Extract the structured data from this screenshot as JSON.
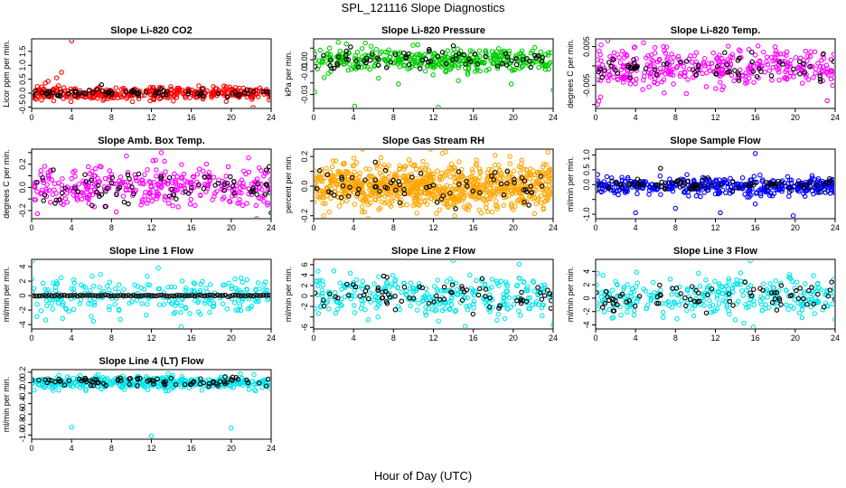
{
  "figure": {
    "title": "SPL_121116  Slope Diagnostics",
    "xlabel": "Hour of Day (UTC)"
  },
  "chart_data": [
    {
      "type": "scatter",
      "title": "Slope Li-820 CO2",
      "ylabel": "Licor ppm per min.",
      "xlim": [
        0,
        24
      ],
      "xticks": [
        0,
        4,
        8,
        12,
        16,
        20,
        24
      ],
      "ylim": [
        -0.55,
        1.95
      ],
      "yticks": [
        -0.5,
        0.0,
        0.5,
        1.0,
        1.5
      ],
      "ytick_labels": [
        "-0.5",
        "0.0",
        "0.5",
        "1.0",
        "1.5"
      ],
      "colors": {
        "primary": "#ff0000",
        "secondary": "#000000"
      },
      "series": [
        {
          "color": "#ff0000",
          "gen": {
            "n": 380,
            "center": 0.0,
            "spread": 0.12,
            "seed": 11
          },
          "outliers": [
            [
              4.0,
              1.88
            ],
            [
              2.5,
              0.55
            ],
            [
              3.0,
              0.75
            ],
            [
              14.2,
              -0.28
            ],
            [
              22.2,
              -0.52
            ],
            [
              19.5,
              -0.3
            ],
            [
              1.0,
              -0.25
            ]
          ]
        },
        {
          "color": "#000000",
          "gen": {
            "n": 75,
            "center": 0.0,
            "spread": 0.08,
            "seed": 12
          },
          "outliers": [
            [
              7.0,
              0.3
            ]
          ]
        }
      ]
    },
    {
      "type": "scatter",
      "title": "Slope Li-820 Pressure",
      "ylabel": "kPa per min.",
      "xlim": [
        0,
        24
      ],
      "xticks": [
        0,
        4,
        8,
        12,
        16,
        20,
        24
      ],
      "ylim": [
        -0.042,
        0.018
      ],
      "yticks": [
        -0.03,
        -0.02,
        -0.01,
        0.0,
        0.01
      ],
      "ytick_labels": [
        "-0.03",
        "",
        "-0.01",
        "0.00",
        ""
      ],
      "colors": {
        "primary": "#00cc00",
        "secondary": "#000000"
      },
      "series": [
        {
          "color": "#00cc00",
          "gen": {
            "n": 380,
            "center": 0.0,
            "spread": 0.005,
            "seed": 21
          },
          "outliers": [
            [
              0.1,
              -0.028
            ],
            [
              4.1,
              -0.04
            ],
            [
              12.5,
              -0.041
            ],
            [
              8.5,
              -0.021
            ],
            [
              6.5,
              -0.016
            ],
            [
              19.8,
              -0.021
            ],
            [
              24.0,
              -0.026
            ],
            [
              14.5,
              -0.018
            ]
          ]
        },
        {
          "color": "#000000",
          "gen": {
            "n": 70,
            "center": 0.0,
            "spread": 0.004,
            "seed": 22
          },
          "outliers": [
            [
              3.7,
              0.011
            ],
            [
              14.0,
              0.012
            ]
          ]
        }
      ]
    },
    {
      "type": "scatter",
      "title": "Slope Li-820 Temp.",
      "ylabel": "degrees C per min.",
      "xlim": [
        0,
        24
      ],
      "xticks": [
        0,
        4,
        8,
        12,
        16,
        20,
        24
      ],
      "ylim": [
        -0.011,
        0.007
      ],
      "yticks": [
        -0.01,
        -0.005,
        0.0,
        0.005
      ],
      "ytick_labels": [
        "",
        "-0.005",
        "",
        "0.005"
      ],
      "colors": {
        "primary": "#ff00ff",
        "secondary": "#000000"
      },
      "series": [
        {
          "color": "#ff00ff",
          "gen": {
            "n": 360,
            "center": -0.0005,
            "spread": 0.0025,
            "seed": 31
          },
          "outliers": [
            [
              1.2,
              0.0065
            ],
            [
              4.8,
              0.006
            ],
            [
              0.2,
              -0.01
            ],
            [
              6.8,
              0.005
            ],
            [
              23.2,
              -0.009
            ],
            [
              0.5,
              -0.008
            ]
          ]
        },
        {
          "color": "#000000",
          "gen": {
            "n": 65,
            "center": -0.0005,
            "spread": 0.002,
            "seed": 32
          },
          "outliers": []
        }
      ]
    },
    {
      "type": "scatter",
      "title": "Slope Amb. Box Temp.",
      "ylabel": "degrees C per min.",
      "xlim": [
        0,
        24
      ],
      "xticks": [
        0,
        4,
        8,
        12,
        16,
        20,
        24
      ],
      "ylim": [
        -0.27,
        0.33
      ],
      "yticks": [
        -0.2,
        -0.1,
        0.0,
        0.1,
        0.2,
        0.3
      ],
      "ytick_labels": [
        "-0.2",
        "",
        "0.0",
        "",
        "0.2",
        ""
      ],
      "colors": {
        "primary": "#ff00ff",
        "secondary": "#000000"
      },
      "series": [
        {
          "color": "#ff00ff",
          "gen": {
            "n": 340,
            "center": 0.0,
            "spread": 0.09,
            "seed": 41
          },
          "outliers": [
            [
              13.0,
              0.3
            ],
            [
              9.5,
              0.27
            ]
          ]
        },
        {
          "color": "#000000",
          "gen": {
            "n": 70,
            "center": 0.0,
            "spread": 0.08,
            "seed": 42
          },
          "outliers": [
            [
              24.0,
              -0.22
            ],
            [
              23.8,
              0.18
            ]
          ]
        }
      ]
    },
    {
      "type": "scatter",
      "title": "Slope Gas Stream RH",
      "ylabel": "percent per min.",
      "xlim": [
        0,
        24
      ],
      "xticks": [
        0,
        4,
        8,
        12,
        16,
        20,
        24
      ],
      "ylim": [
        -0.22,
        0.25
      ],
      "yticks": [
        -0.2,
        -0.1,
        0.0,
        0.1,
        0.2
      ],
      "ytick_labels": [
        "-0.2",
        "",
        "0.0",
        "",
        "0.2"
      ],
      "colors": {
        "primary": "#ffa500",
        "secondary": "#000000"
      },
      "series": [
        {
          "color": "#ffa500",
          "gen": {
            "n": 900,
            "center": 0.0,
            "spread": 0.075,
            "seed": 51
          },
          "outliers": [
            [
              23.5,
              0.23
            ],
            [
              1.0,
              -0.2
            ]
          ]
        },
        {
          "color": "#000000",
          "gen": {
            "n": 70,
            "center": 0.0,
            "spread": 0.06,
            "seed": 52
          },
          "outliers": []
        }
      ]
    },
    {
      "type": "scatter",
      "title": "Slope Sample Flow",
      "ylabel": "ml/min per min.",
      "xlim": [
        0,
        24
      ],
      "xticks": [
        0,
        4,
        8,
        12,
        16,
        20,
        24
      ],
      "ylim": [
        -1.15,
        1.2
      ],
      "yticks": [
        -1.0,
        -0.5,
        0.0,
        0.5,
        1.0
      ],
      "ytick_labels": [
        "-1.0",
        "",
        "0.0",
        "0.5",
        "1.0"
      ],
      "colors": {
        "primary": "#0000ff",
        "secondary": "#000000"
      },
      "series": [
        {
          "color": "#0000ff",
          "gen": {
            "n": 420,
            "center": -0.05,
            "spread": 0.15,
            "seed": 61
          },
          "outliers": [
            [
              4.0,
              -0.95
            ],
            [
              16.0,
              1.05
            ],
            [
              19.8,
              -1.05
            ],
            [
              12.5,
              -0.95
            ],
            [
              8.0,
              -0.8
            ],
            [
              24.0,
              -0.25
            ]
          ]
        },
        {
          "color": "#000000",
          "gen": {
            "n": 80,
            "center": 0.0,
            "spread": 0.1,
            "seed": 62
          },
          "outliers": [
            [
              6.5,
              0.55
            ]
          ]
        }
      ]
    },
    {
      "type": "scatter",
      "title": "Slope Line 1 Flow",
      "ylabel": "ml/min per min.",
      "xlim": [
        0,
        24
      ],
      "xticks": [
        0,
        4,
        8,
        12,
        16,
        20,
        24
      ],
      "ylim": [
        -4.6,
        5.0
      ],
      "yticks": [
        -4,
        -2,
        0,
        2,
        4
      ],
      "ytick_labels": [
        "-4",
        "-2",
        "0",
        "2",
        "4"
      ],
      "colors": {
        "primary": "#00ffff",
        "secondary": "#000000"
      },
      "series": [
        {
          "color": "#00e5ee",
          "gen": {
            "n": 240,
            "center": 0.0,
            "spread": 1.3,
            "seed": 71
          },
          "outliers": [
            [
              0.1,
              4.8
            ],
            [
              15.0,
              -4.3
            ],
            [
              12.7,
              3.8
            ]
          ]
        },
        {
          "color": "#000000",
          "gen": {
            "n": 95,
            "center": 0.0,
            "spread": 0.04,
            "seed": 72,
            "even": true
          },
          "outliers": []
        }
      ]
    },
    {
      "type": "scatter",
      "title": "Slope Line 2 Flow",
      "ylabel": "ml/min per min.",
      "xlim": [
        0,
        24
      ],
      "xticks": [
        0,
        4,
        8,
        12,
        16,
        20,
        24
      ],
      "ylim": [
        -6.3,
        7.0
      ],
      "yticks": [
        -6,
        -4,
        -2,
        0,
        2,
        4,
        6
      ],
      "ytick_labels": [
        "-6",
        "",
        "-2",
        "0",
        "2",
        "4",
        "6"
      ],
      "colors": {
        "primary": "#00ffff",
        "secondary": "#000000"
      },
      "series": [
        {
          "color": "#00e5ee",
          "gen": {
            "n": 300,
            "center": 0.0,
            "spread": 2.0,
            "seed": 81
          },
          "outliers": [
            [
              15.2,
              -5.8
            ],
            [
              14.0,
              6.8
            ],
            [
              24.0,
              -5.5
            ]
          ]
        },
        {
          "color": "#000000",
          "gen": {
            "n": 75,
            "center": 0.0,
            "spread": 1.4,
            "seed": 82
          },
          "outliers": []
        }
      ]
    },
    {
      "type": "scatter",
      "title": "Slope Line 3 Flow",
      "ylabel": "ml/min per min.",
      "xlim": [
        0,
        24
      ],
      "xticks": [
        0,
        4,
        8,
        12,
        16,
        20,
        24
      ],
      "ylim": [
        -4.6,
        5.8
      ],
      "yticks": [
        -4,
        -2,
        0,
        2,
        4
      ],
      "ytick_labels": [
        "-4",
        "-2",
        "0",
        "2",
        "4"
      ],
      "colors": {
        "primary": "#00ffff",
        "secondary": "#000000"
      },
      "series": [
        {
          "color": "#00e5ee",
          "gen": {
            "n": 300,
            "center": 0.0,
            "spread": 1.5,
            "seed": 91
          },
          "outliers": [
            [
              0.2,
              3.7
            ],
            [
              15.5,
              5.6
            ],
            [
              15.8,
              -4.3
            ]
          ]
        },
        {
          "color": "#000000",
          "gen": {
            "n": 75,
            "center": 0.0,
            "spread": 1.1,
            "seed": 92
          },
          "outliers": []
        }
      ]
    },
    {
      "type": "scatter",
      "title": "Slope Line 4 (LT) Flow",
      "ylabel": "ml/min per min.",
      "xlim": [
        0,
        24
      ],
      "xticks": [
        0,
        4,
        8,
        12,
        16,
        20,
        24
      ],
      "ylim": [
        -1.08,
        0.25
      ],
      "yticks": [
        -1.0,
        -0.8,
        -0.6,
        -0.4,
        -0.2,
        0.0,
        0.2
      ],
      "ytick_labels": [
        "-1.0",
        "-0.8",
        "-0.6",
        "-0.4",
        "-0.2",
        "0.0",
        "0.2"
      ],
      "colors": {
        "primary": "#00ffff",
        "secondary": "#000000"
      },
      "series": [
        {
          "color": "#00e5ee",
          "gen": {
            "n": 400,
            "center": 0.0,
            "spread": 0.06,
            "seed": 101
          },
          "outliers": [
            [
              4.0,
              -0.85
            ],
            [
              12.0,
              -1.02
            ],
            [
              20.0,
              -0.87
            ]
          ]
        },
        {
          "color": "#000000",
          "gen": {
            "n": 80,
            "center": 0.02,
            "spread": 0.04,
            "seed": 102
          },
          "outliers": []
        }
      ]
    }
  ]
}
